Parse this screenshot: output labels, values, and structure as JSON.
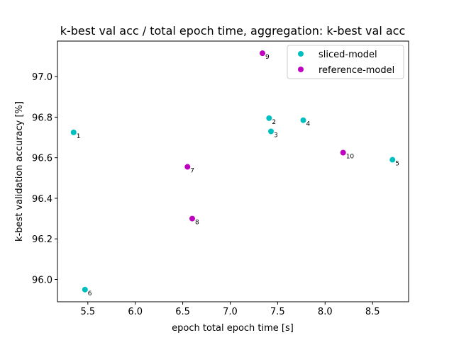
{
  "chart_data": {
    "type": "scatter",
    "title": "k-best val acc / total epoch time, aggregation: k-best val acc",
    "xlabel": "epoch total epoch time [s]",
    "ylabel": "k-best validation accuracy [%]",
    "xlim": [
      5.18,
      8.88
    ],
    "ylim": [
      95.89,
      97.175
    ],
    "xticks": [
      5.5,
      6.0,
      6.5,
      7.0,
      7.5,
      8.0,
      8.5
    ],
    "xtick_labels": [
      "5.5",
      "6.0",
      "6.5",
      "7.0",
      "7.5",
      "8.0",
      "8.5"
    ],
    "yticks": [
      96.0,
      96.2,
      96.4,
      96.6,
      96.8,
      97.0
    ],
    "ytick_labels": [
      "96.0",
      "96.2",
      "96.4",
      "96.6",
      "96.8",
      "97.0"
    ],
    "grid": false,
    "legend_position": "top-right",
    "series": [
      {
        "name": "sliced-model",
        "color": "#00bfbf",
        "points": [
          {
            "x": 5.35,
            "y": 96.725,
            "label": "1"
          },
          {
            "x": 7.41,
            "y": 96.795,
            "label": "2"
          },
          {
            "x": 7.43,
            "y": 96.73,
            "label": "3"
          },
          {
            "x": 7.77,
            "y": 96.785,
            "label": "4"
          },
          {
            "x": 8.71,
            "y": 96.59,
            "label": "5"
          },
          {
            "x": 5.47,
            "y": 95.95,
            "label": "6"
          }
        ]
      },
      {
        "name": "reference-model",
        "color": "#bf00bf",
        "points": [
          {
            "x": 6.55,
            "y": 96.555,
            "label": "7"
          },
          {
            "x": 6.6,
            "y": 96.3,
            "label": "8"
          },
          {
            "x": 7.34,
            "y": 97.115,
            "label": "9"
          },
          {
            "x": 8.19,
            "y": 96.625,
            "label": "10"
          }
        ]
      }
    ]
  }
}
